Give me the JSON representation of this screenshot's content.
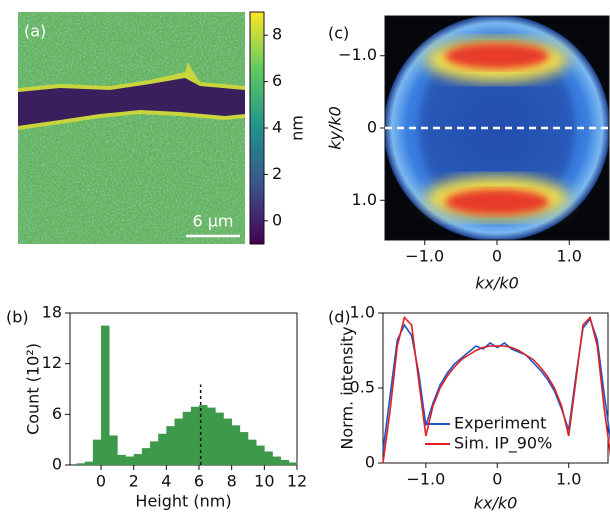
{
  "chart_data": [
    {
      "type": "image",
      "panel_label": "(a)",
      "colorbar_label": "nm",
      "scale_bar": "6 μm",
      "clim": [
        -1,
        9
      ],
      "cticks": [
        0,
        2,
        4,
        6,
        8
      ]
    },
    {
      "type": "histogram",
      "panel_label": "(b)",
      "xlabel": "Height (nm)",
      "ylabel": "Count (10²)",
      "color": "#3d9a4a",
      "bins": [
        -1.5,
        -1,
        -0.5,
        0,
        0.5,
        1,
        1.5,
        2,
        2.5,
        3,
        3.5,
        4,
        4.5,
        5,
        5.5,
        6,
        6.5,
        7,
        7.5,
        8,
        8.5,
        9,
        9.5,
        10,
        10.5,
        11,
        11.5,
        12
      ],
      "values": [
        0.2,
        0.4,
        3,
        16.5,
        3.5,
        1.2,
        1.0,
        1.3,
        2.0,
        2.8,
        3.7,
        4.6,
        5.5,
        6.3,
        6.9,
        7.1,
        6.8,
        6.2,
        5.5,
        4.7,
        3.9,
        3.0,
        2.3,
        1.6,
        1.0,
        0.6,
        0.3
      ],
      "reference_line": 6.1,
      "xlim": [
        -1.9,
        12
      ],
      "ylim": [
        0,
        18
      ],
      "xticks": [
        0,
        2,
        4,
        6,
        8,
        10,
        12
      ],
      "yticks": [
        0,
        6,
        12,
        18
      ]
    },
    {
      "type": "image",
      "panel_label": "(c)",
      "xlabel": "kx/k0",
      "ylabel": "ky/k0",
      "reference_line": 0,
      "xlim": [
        -1.55,
        1.55
      ],
      "ylim": [
        1.55,
        -1.55
      ],
      "xticks": [
        {
          "value": -1,
          "label": "−1.0"
        },
        0,
        {
          "value": 1,
          "label": "1.0"
        }
      ],
      "yticks": [
        {
          "value": -1,
          "label": "−1.0"
        },
        0,
        {
          "value": 1,
          "label": "1.0"
        }
      ]
    },
    {
      "type": "line",
      "panel_label": "(d)",
      "xlabel": "kx/k0",
      "ylabel": "Norm. intensity",
      "x": [
        -1.6,
        -1.5,
        -1.4,
        -1.3,
        -1.2,
        -1.1,
        -1.0,
        -0.9,
        -0.8,
        -0.7,
        -0.6,
        -0.5,
        -0.4,
        -0.3,
        -0.2,
        -0.1,
        0,
        0.1,
        0.2,
        0.3,
        0.4,
        0.5,
        0.6,
        0.7,
        0.8,
        0.9,
        1.0,
        1.1,
        1.2,
        1.3,
        1.4,
        1.5,
        1.6
      ],
      "series": [
        {
          "name": "Experiment",
          "color": "#2255cc",
          "values": [
            0.08,
            0.45,
            0.82,
            0.92,
            0.85,
            0.6,
            0.25,
            0.4,
            0.52,
            0.6,
            0.66,
            0.7,
            0.74,
            0.78,
            0.76,
            0.8,
            0.77,
            0.8,
            0.76,
            0.74,
            0.72,
            0.67,
            0.62,
            0.56,
            0.48,
            0.36,
            0.22,
            0.58,
            0.9,
            0.96,
            0.82,
            0.45,
            0.1
          ]
        },
        {
          "name": "Sim. IP_90%",
          "color": "#e02020",
          "values": [
            0.0,
            0.35,
            0.78,
            0.97,
            0.92,
            0.55,
            0.18,
            0.38,
            0.5,
            0.58,
            0.64,
            0.69,
            0.72,
            0.75,
            0.77,
            0.78,
            0.78,
            0.78,
            0.77,
            0.75,
            0.72,
            0.69,
            0.64,
            0.58,
            0.5,
            0.38,
            0.18,
            0.55,
            0.92,
            0.97,
            0.78,
            0.35,
            0.0
          ]
        }
      ],
      "xlim": [
        -1.6,
        1.55
      ],
      "ylim": [
        0,
        1.0
      ],
      "xticks": [
        {
          "value": -1,
          "label": "−1.0"
        },
        0,
        {
          "value": 1,
          "label": "1.0"
        }
      ],
      "yticks": [
        0,
        0.5,
        {
          "value": 1,
          "label": "1.0"
        }
      ]
    }
  ]
}
